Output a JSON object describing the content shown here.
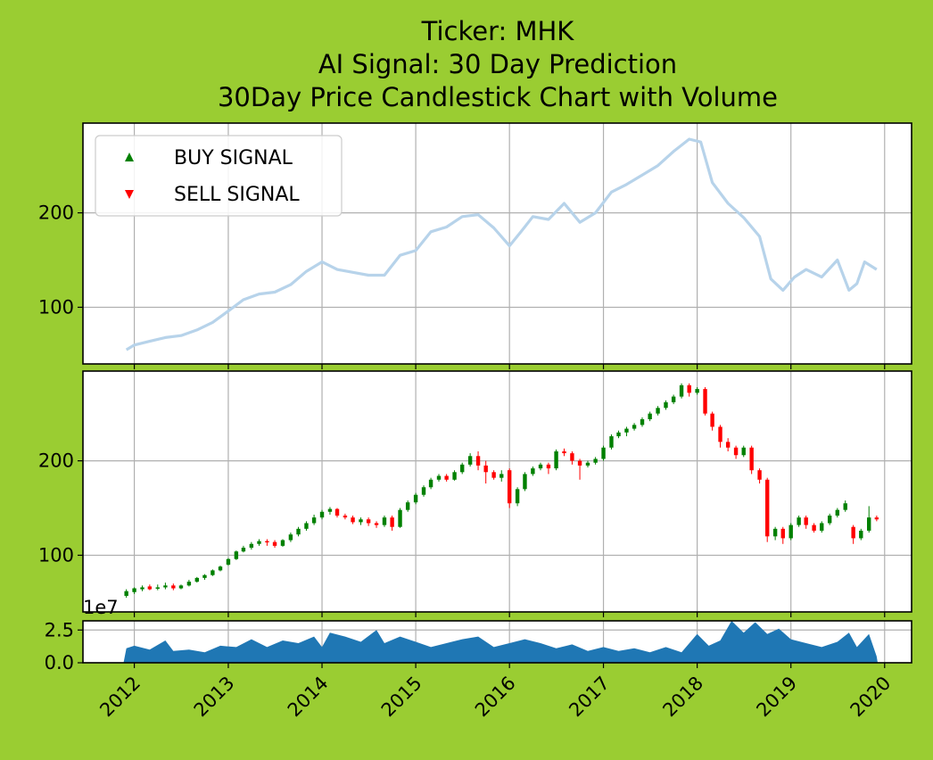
{
  "chart_data": {
    "type": "candlestick",
    "title_lines": [
      "Ticker: MHK",
      "AI Signal: 30 Day Prediction",
      "30Day Price Candlestick Chart with Volume"
    ],
    "x_range": [
      "2011-06-15",
      "2020-04-15"
    ],
    "x_ticks": [
      "2012",
      "2013",
      "2014",
      "2015",
      "2016",
      "2017",
      "2018",
      "2019",
      "2020"
    ],
    "grid": true,
    "colors": {
      "background": "#9acd32",
      "line": "#b7d3ea",
      "up": "#008000",
      "down": "#ff0000",
      "volume": "#1f77b4",
      "grid": "#b0b0b0"
    },
    "price_panel": {
      "yticks": [
        100,
        200
      ],
      "ylim": [
        40,
        295
      ],
      "legend": {
        "position": "upper left",
        "items": [
          {
            "label": "BUY SIGNAL",
            "marker": "up-triangle",
            "color": "#008000"
          },
          {
            "label": "SELL SIGNAL",
            "marker": "down-triangle",
            "color": "#ff0000"
          }
        ]
      },
      "close_series": [
        [
          "2011-12-01",
          55
        ],
        [
          "2012-01-01",
          60
        ],
        [
          "2012-03-01",
          64
        ],
        [
          "2012-05-01",
          68
        ],
        [
          "2012-07-01",
          70
        ],
        [
          "2012-09-01",
          76
        ],
        [
          "2012-11-01",
          84
        ],
        [
          "2013-01-01",
          96
        ],
        [
          "2013-03-01",
          108
        ],
        [
          "2013-05-01",
          114
        ],
        [
          "2013-07-01",
          116
        ],
        [
          "2013-09-01",
          124
        ],
        [
          "2013-11-01",
          138
        ],
        [
          "2014-01-01",
          148
        ],
        [
          "2014-03-01",
          140
        ],
        [
          "2014-05-01",
          137
        ],
        [
          "2014-07-01",
          134
        ],
        [
          "2014-09-01",
          134
        ],
        [
          "2014-11-01",
          155
        ],
        [
          "2015-01-01",
          160
        ],
        [
          "2015-03-01",
          180
        ],
        [
          "2015-05-01",
          185
        ],
        [
          "2015-07-01",
          196
        ],
        [
          "2015-09-01",
          198
        ],
        [
          "2015-11-01",
          184
        ],
        [
          "2016-01-01",
          165
        ],
        [
          "2016-02-15",
          180
        ],
        [
          "2016-04-01",
          196
        ],
        [
          "2016-06-01",
          193
        ],
        [
          "2016-08-01",
          210
        ],
        [
          "2016-10-01",
          190
        ],
        [
          "2016-12-01",
          200
        ],
        [
          "2017-02-01",
          222
        ],
        [
          "2017-04-01",
          230
        ],
        [
          "2017-06-01",
          240
        ],
        [
          "2017-08-01",
          250
        ],
        [
          "2017-10-01",
          265
        ],
        [
          "2017-12-01",
          278
        ],
        [
          "2018-01-15",
          275
        ],
        [
          "2018-03-01",
          232
        ],
        [
          "2018-05-01",
          210
        ],
        [
          "2018-07-01",
          195
        ],
        [
          "2018-09-01",
          175
        ],
        [
          "2018-10-15",
          130
        ],
        [
          "2018-12-01",
          118
        ],
        [
          "2019-01-15",
          132
        ],
        [
          "2019-03-01",
          140
        ],
        [
          "2019-05-01",
          132
        ],
        [
          "2019-07-01",
          150
        ],
        [
          "2019-08-15",
          118
        ],
        [
          "2019-09-15",
          125
        ],
        [
          "2019-10-15",
          148
        ],
        [
          "2019-12-01",
          140
        ]
      ]
    },
    "candle_panel": {
      "yticks": [
        100,
        200
      ],
      "ylim": [
        40,
        295
      ],
      "candles": [
        [
          "2011-12-01",
          57,
          62,
          55,
          64
        ],
        [
          "2012-01-01",
          61,
          65,
          59,
          66
        ],
        [
          "2012-02-01",
          64,
          66,
          62,
          68
        ],
        [
          "2012-03-01",
          67,
          64,
          63,
          69
        ],
        [
          "2012-04-01",
          65,
          66,
          63,
          69
        ],
        [
          "2012-05-01",
          66,
          68,
          64,
          71
        ],
        [
          "2012-06-01",
          68,
          65,
          63,
          70
        ],
        [
          "2012-07-01",
          65,
          68,
          64,
          69
        ],
        [
          "2012-08-01",
          68,
          72,
          67,
          74
        ],
        [
          "2012-09-01",
          72,
          76,
          71,
          77
        ],
        [
          "2012-10-01",
          76,
          79,
          74,
          80
        ],
        [
          "2012-11-01",
          79,
          84,
          78,
          85
        ],
        [
          "2012-12-01",
          84,
          88,
          83,
          89
        ],
        [
          "2013-01-01",
          90,
          96,
          89,
          97
        ],
        [
          "2013-02-01",
          96,
          104,
          95,
          105
        ],
        [
          "2013-03-01",
          104,
          108,
          103,
          110
        ],
        [
          "2013-04-01",
          108,
          112,
          106,
          114
        ],
        [
          "2013-05-01",
          112,
          115,
          110,
          117
        ],
        [
          "2013-06-01",
          115,
          114,
          110,
          117
        ],
        [
          "2013-07-01",
          114,
          110,
          108,
          116
        ],
        [
          "2013-08-01",
          110,
          116,
          109,
          117
        ],
        [
          "2013-09-01",
          116,
          122,
          114,
          124
        ],
        [
          "2013-10-01",
          122,
          128,
          120,
          130
        ],
        [
          "2013-11-01",
          128,
          134,
          126,
          136
        ],
        [
          "2013-12-01",
          134,
          140,
          132,
          143
        ],
        [
          "2014-01-01",
          140,
          146,
          138,
          148
        ],
        [
          "2014-02-01",
          146,
          149,
          143,
          151
        ],
        [
          "2014-03-01",
          149,
          142,
          140,
          150
        ],
        [
          "2014-04-01",
          142,
          140,
          138,
          144
        ],
        [
          "2014-05-01",
          140,
          135,
          133,
          142
        ],
        [
          "2014-06-01",
          135,
          138,
          132,
          140
        ],
        [
          "2014-07-01",
          138,
          134,
          131,
          140
        ],
        [
          "2014-08-01",
          134,
          132,
          129,
          136
        ],
        [
          "2014-09-01",
          132,
          140,
          130,
          142
        ],
        [
          "2014-10-01",
          140,
          130,
          126,
          142
        ],
        [
          "2014-11-01",
          130,
          148,
          129,
          150
        ],
        [
          "2014-12-01",
          148,
          156,
          146,
          158
        ],
        [
          "2015-01-01",
          156,
          164,
          154,
          166
        ],
        [
          "2015-02-01",
          164,
          172,
          162,
          174
        ],
        [
          "2015-03-01",
          172,
          180,
          170,
          182
        ],
        [
          "2015-04-01",
          180,
          184,
          178,
          186
        ],
        [
          "2015-05-01",
          184,
          180,
          178,
          186
        ],
        [
          "2015-06-01",
          180,
          188,
          179,
          190
        ],
        [
          "2015-07-01",
          188,
          196,
          186,
          198
        ],
        [
          "2015-08-01",
          196,
          205,
          194,
          208
        ],
        [
          "2015-09-01",
          205,
          195,
          190,
          210
        ],
        [
          "2015-10-01",
          195,
          188,
          176,
          200
        ],
        [
          "2015-11-01",
          188,
          182,
          180,
          190
        ],
        [
          "2015-12-01",
          182,
          186,
          178,
          190
        ],
        [
          "2016-01-01",
          190,
          155,
          150,
          192
        ],
        [
          "2016-02-01",
          155,
          170,
          152,
          172
        ],
        [
          "2016-03-01",
          170,
          186,
          168,
          188
        ],
        [
          "2016-04-01",
          186,
          192,
          184,
          194
        ],
        [
          "2016-05-01",
          192,
          196,
          190,
          198
        ],
        [
          "2016-06-01",
          196,
          192,
          186,
          198
        ],
        [
          "2016-07-01",
          192,
          210,
          190,
          212
        ],
        [
          "2016-08-01",
          210,
          208,
          205,
          213
        ],
        [
          "2016-09-01",
          208,
          200,
          196,
          210
        ],
        [
          "2016-10-01",
          200,
          195,
          180,
          202
        ],
        [
          "2016-11-01",
          195,
          198,
          193,
          200
        ],
        [
          "2016-12-01",
          198,
          202,
          196,
          204
        ],
        [
          "2017-01-01",
          202,
          214,
          200,
          216
        ],
        [
          "2017-02-01",
          214,
          226,
          212,
          228
        ],
        [
          "2017-03-01",
          226,
          230,
          224,
          232
        ],
        [
          "2017-04-01",
          230,
          234,
          226,
          236
        ],
        [
          "2017-05-01",
          234,
          238,
          232,
          240
        ],
        [
          "2017-06-01",
          238,
          244,
          236,
          246
        ],
        [
          "2017-07-01",
          244,
          250,
          242,
          252
        ],
        [
          "2017-08-01",
          250,
          256,
          248,
          258
        ],
        [
          "2017-09-01",
          256,
          262,
          254,
          264
        ],
        [
          "2017-10-01",
          262,
          268,
          260,
          270
        ],
        [
          "2017-11-01",
          268,
          280,
          266,
          282
        ],
        [
          "2017-12-01",
          280,
          272,
          268,
          282
        ],
        [
          "2018-01-01",
          272,
          276,
          270,
          278
        ],
        [
          "2018-02-01",
          276,
          250,
          248,
          278
        ],
        [
          "2018-03-01",
          250,
          236,
          232,
          252
        ],
        [
          "2018-04-01",
          236,
          220,
          214,
          238
        ],
        [
          "2018-05-01",
          220,
          214,
          210,
          224
        ],
        [
          "2018-06-01",
          214,
          206,
          202,
          216
        ],
        [
          "2018-07-01",
          206,
          214,
          204,
          216
        ],
        [
          "2018-08-01",
          214,
          190,
          186,
          216
        ],
        [
          "2018-09-01",
          190,
          180,
          176,
          192
        ],
        [
          "2018-10-01",
          180,
          120,
          114,
          182
        ],
        [
          "2018-11-01",
          120,
          128,
          116,
          130
        ],
        [
          "2018-12-01",
          128,
          118,
          112,
          130
        ],
        [
          "2019-01-01",
          118,
          132,
          116,
          134
        ],
        [
          "2019-02-01",
          132,
          140,
          130,
          142
        ],
        [
          "2019-03-01",
          140,
          132,
          128,
          142
        ],
        [
          "2019-04-01",
          132,
          126,
          124,
          134
        ],
        [
          "2019-05-01",
          126,
          134,
          124,
          136
        ],
        [
          "2019-06-01",
          134,
          142,
          132,
          144
        ],
        [
          "2019-07-01",
          142,
          148,
          140,
          150
        ],
        [
          "2019-08-01",
          148,
          155,
          146,
          158
        ],
        [
          "2019-09-01",
          130,
          118,
          112,
          132
        ],
        [
          "2019-10-01",
          118,
          126,
          116,
          128
        ],
        [
          "2019-11-01",
          126,
          140,
          124,
          152
        ],
        [
          "2019-12-01",
          140,
          138,
          136,
          142
        ]
      ]
    },
    "volume_panel": {
      "exponent_label": "1e7",
      "yticks": [
        "0.0",
        "2.5"
      ],
      "ylim": [
        0,
        3.2
      ],
      "series": [
        [
          "2011-11-20",
          0
        ],
        [
          "2011-12-01",
          1.1
        ],
        [
          "2012-01-01",
          1.3
        ],
        [
          "2012-03-01",
          1.0
        ],
        [
          "2012-05-01",
          1.7
        ],
        [
          "2012-06-01",
          0.9
        ],
        [
          "2012-08-01",
          1.0
        ],
        [
          "2012-10-01",
          0.8
        ],
        [
          "2012-12-01",
          1.3
        ],
        [
          "2013-02-01",
          1.2
        ],
        [
          "2013-04-01",
          1.8
        ],
        [
          "2013-06-01",
          1.2
        ],
        [
          "2013-08-01",
          1.7
        ],
        [
          "2013-10-01",
          1.5
        ],
        [
          "2013-12-01",
          2.0
        ],
        [
          "2014-01-01",
          1.2
        ],
        [
          "2014-02-01",
          2.3
        ],
        [
          "2014-04-01",
          2.0
        ],
        [
          "2014-06-01",
          1.6
        ],
        [
          "2014-08-01",
          2.5
        ],
        [
          "2014-09-01",
          1.5
        ],
        [
          "2014-11-01",
          2.0
        ],
        [
          "2015-01-01",
          1.6
        ],
        [
          "2015-03-01",
          1.2
        ],
        [
          "2015-05-01",
          1.5
        ],
        [
          "2015-07-01",
          1.8
        ],
        [
          "2015-09-01",
          2.0
        ],
        [
          "2015-11-01",
          1.2
        ],
        [
          "2016-01-01",
          1.5
        ],
        [
          "2016-03-01",
          1.8
        ],
        [
          "2016-05-01",
          1.5
        ],
        [
          "2016-07-01",
          1.1
        ],
        [
          "2016-09-01",
          1.4
        ],
        [
          "2016-11-01",
          0.9
        ],
        [
          "2017-01-01",
          1.2
        ],
        [
          "2017-03-01",
          0.9
        ],
        [
          "2017-05-01",
          1.1
        ],
        [
          "2017-07-01",
          0.8
        ],
        [
          "2017-09-01",
          1.2
        ],
        [
          "2017-11-01",
          0.8
        ],
        [
          "2018-01-01",
          2.2
        ],
        [
          "2018-02-15",
          1.3
        ],
        [
          "2018-04-01",
          1.7
        ],
        [
          "2018-05-15",
          3.2
        ],
        [
          "2018-07-01",
          2.3
        ],
        [
          "2018-08-15",
          3.1
        ],
        [
          "2018-10-01",
          2.2
        ],
        [
          "2018-11-15",
          2.6
        ],
        [
          "2019-01-01",
          1.8
        ],
        [
          "2019-03-01",
          1.5
        ],
        [
          "2019-05-01",
          1.2
        ],
        [
          "2019-07-01",
          1.6
        ],
        [
          "2019-08-15",
          2.3
        ],
        [
          "2019-09-15",
          1.2
        ],
        [
          "2019-11-01",
          2.2
        ],
        [
          "2019-12-01",
          0.5
        ],
        [
          "2019-12-05",
          0
        ]
      ]
    }
  }
}
